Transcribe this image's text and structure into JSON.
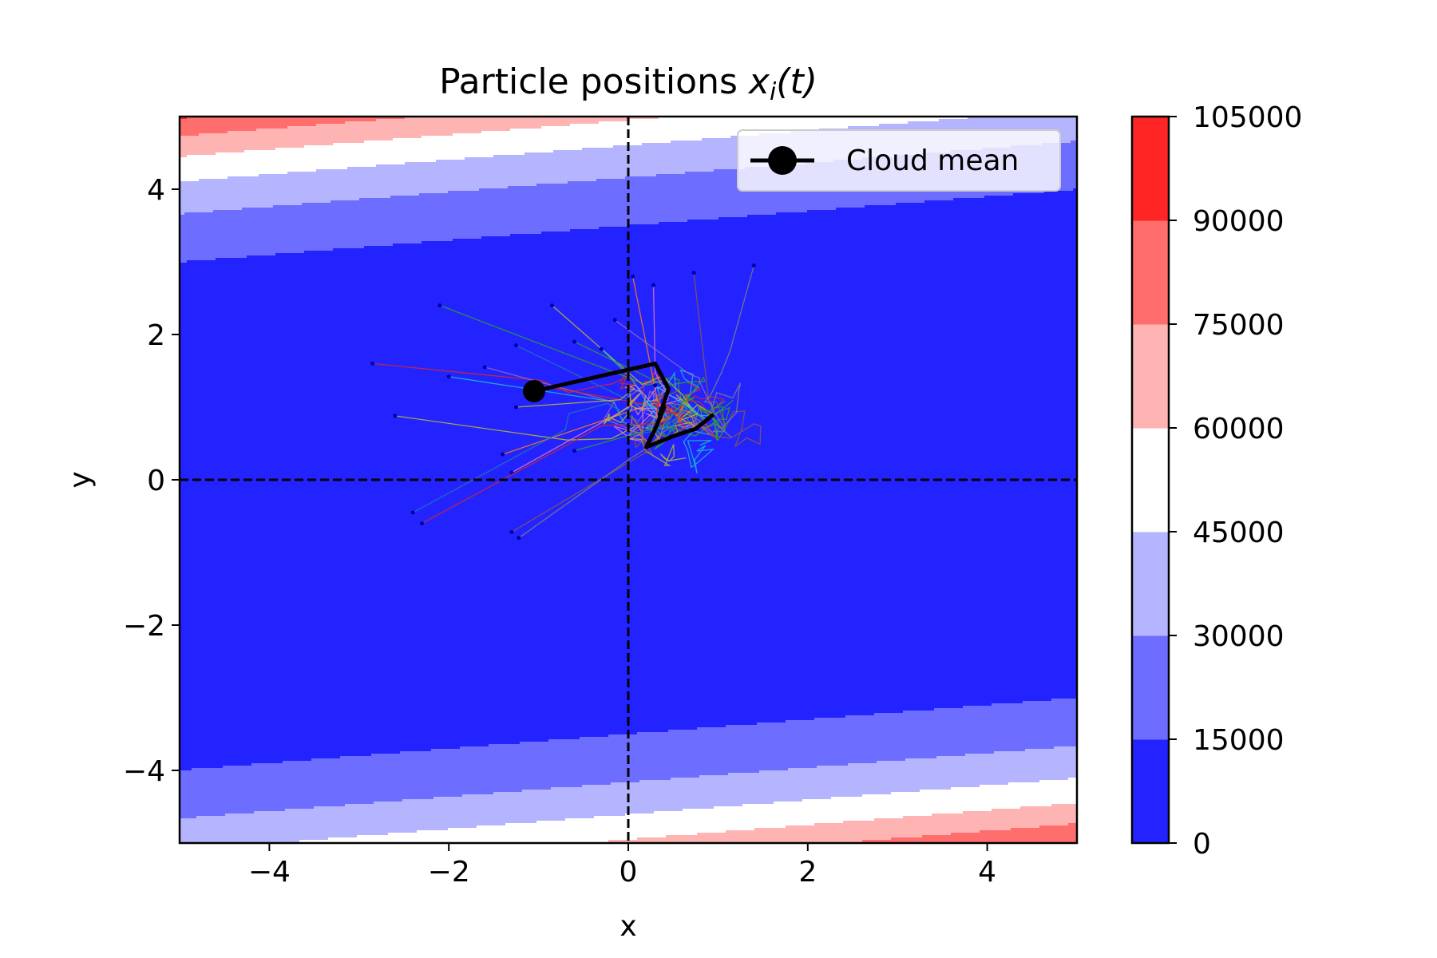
{
  "chart_data": {
    "type": "contour",
    "title": "Particle positions  x_i(t)",
    "title_main": "Particle positions",
    "title_math": "x",
    "title_sub": "i",
    "title_arg": "(t)",
    "xlabel": "x",
    "ylabel": "y",
    "xlim": [
      -5,
      5
    ],
    "ylim": [
      -5,
      5
    ],
    "xticks": [
      -4,
      -2,
      0,
      2,
      4
    ],
    "yticks": [
      -4,
      -2,
      0,
      2,
      4
    ],
    "xtick_labels": [
      "−4",
      "−2",
      "0",
      "2",
      "4"
    ],
    "ytick_labels": [
      "−4",
      "−2",
      "0",
      "2",
      "4"
    ],
    "contour_function": "100*(y - 0.1*x)^4 + (1-x)^2 (approximate)",
    "levels": [
      0,
      15000,
      30000,
      45000,
      60000,
      75000,
      90000,
      105000
    ],
    "level_labels": [
      "0",
      "15000",
      "30000",
      "45000",
      "60000",
      "75000",
      "90000",
      "105000"
    ],
    "level_colors": [
      "#2323ff",
      "#6d6dff",
      "#b4b4ff",
      "#ffffff",
      "#ffb4b4",
      "#ff6d6d",
      "#ff2525"
    ],
    "reference_lines": {
      "x": 0,
      "y": 0,
      "style": "dashed",
      "color": "#000000"
    },
    "legend": {
      "label": "Cloud mean",
      "location": "upper right"
    },
    "cloud_mean_path": [
      [
        -1.05,
        1.22
      ],
      [
        0.3,
        1.6
      ],
      [
        0.45,
        1.25
      ],
      [
        0.35,
        0.9
      ],
      [
        0.4,
        1.0
      ],
      [
        0.3,
        0.7
      ],
      [
        0.2,
        0.45
      ],
      [
        0.5,
        0.6
      ],
      [
        0.75,
        0.7
      ],
      [
        0.95,
        0.9
      ]
    ],
    "particle_start_points": [
      [
        -2.85,
        1.6
      ],
      [
        -2.6,
        0.88
      ],
      [
        -2.1,
        2.4
      ],
      [
        -2.0,
        1.42
      ],
      [
        -1.6,
        1.55
      ],
      [
        -1.4,
        0.35
      ],
      [
        -1.3,
        0.1
      ],
      [
        -1.3,
        -0.72
      ],
      [
        -1.22,
        -0.8
      ],
      [
        -1.25,
        1.85
      ],
      [
        -1.0,
        1.3
      ],
      [
        -0.85,
        2.4
      ],
      [
        -0.6,
        1.9
      ],
      [
        -0.3,
        1.8
      ],
      [
        -0.15,
        2.2
      ],
      [
        0.05,
        2.8
      ],
      [
        0.28,
        2.68
      ],
      [
        0.73,
        2.85
      ],
      [
        1.4,
        2.95
      ],
      [
        -2.4,
        -0.45
      ],
      [
        -2.3,
        -0.6
      ],
      [
        -1.25,
        1.0
      ],
      [
        -0.6,
        0.4
      ],
      [
        0.3,
        1.3
      ]
    ],
    "particle_colors": [
      "#d62728",
      "#bcbd22",
      "#2ca02c",
      "#17becf",
      "#9467bd",
      "#ff7f0e",
      "#e377c2",
      "#8c564b",
      "#7f7f7f",
      "#1f77b4"
    ]
  }
}
